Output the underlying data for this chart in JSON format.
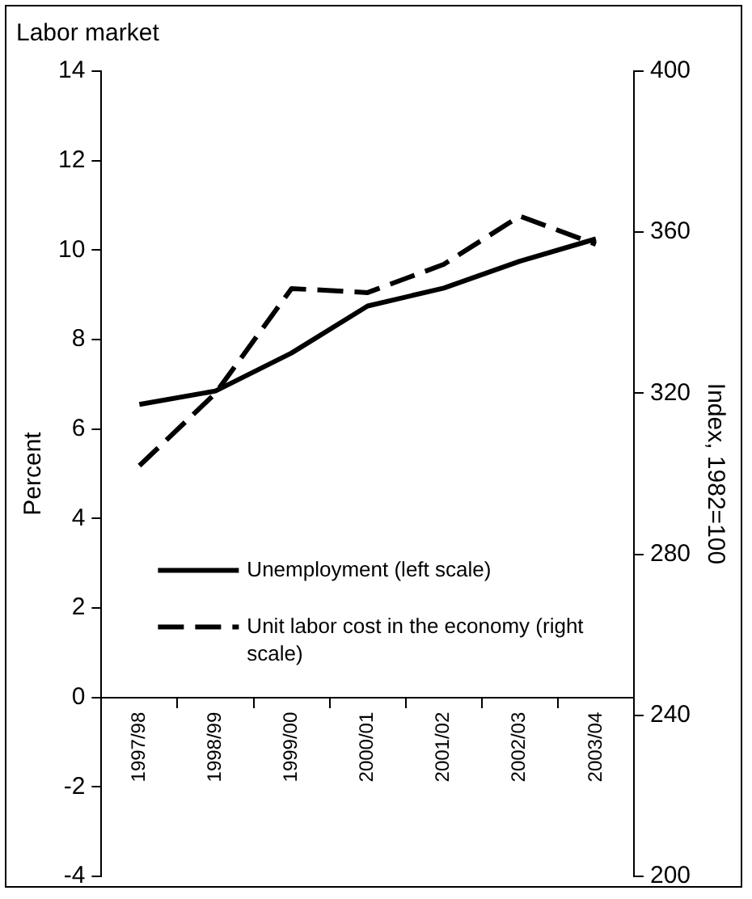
{
  "chart_data": {
    "type": "line",
    "title": "Labor market",
    "ylabel": "Percent",
    "y2label": "Index, 1982=100",
    "categories": [
      "1997/98",
      "1998/99",
      "1999/00",
      "2000/01",
      "2001/02",
      "2002/03",
      "2003/04"
    ],
    "series": [
      {
        "name": "Unemployment (left scale)",
        "color": "#000000",
        "line_style": "solid",
        "values": [
          6.55,
          6.85,
          7.7,
          8.75,
          9.15,
          9.75,
          10.25
        ]
      },
      {
        "name": "Unit labor cost in the economy (right scale)",
        "color": "#000000",
        "line_style": "dashed",
        "axis": "y2",
        "values": [
          302,
          320,
          346,
          345,
          352,
          364,
          357
        ]
      }
    ],
    "ylim": [
      -4,
      14
    ],
    "yticks": [
      -4,
      -2,
      0,
      2,
      4,
      6,
      8,
      10,
      12,
      14
    ],
    "y2lim": [
      200,
      400
    ],
    "y2ticks": [
      200,
      240,
      280,
      320,
      360,
      400
    ],
    "grid": false,
    "legend": "bottom right",
    "marker": "none"
  }
}
